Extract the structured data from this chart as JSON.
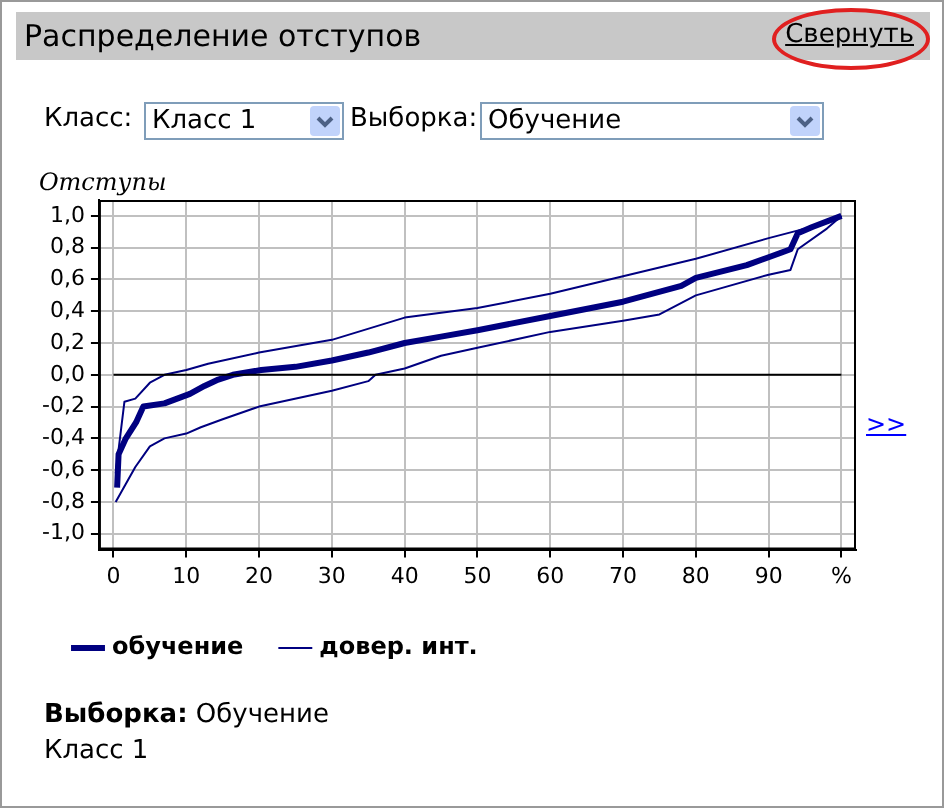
{
  "chart_data": {
    "type": "line",
    "title": "Распределение отступов",
    "ylabel": "Отступы",
    "annotations": [
      "Свернуть",
      "Класс:",
      "Класс 1",
      "Выборка:",
      "Обучение",
      ">>",
      "Выборка:",
      "Обучение",
      "Класс 1"
    ],
    "series": [
      {
        "name": "обучение",
        "color": "#000080",
        "x": [
          0.5,
          0.7,
          1.7,
          3.1,
          4.1,
          7,
          10.5,
          12.5,
          14.4,
          16.4,
          20.3,
          25,
          30,
          35,
          40,
          45,
          50,
          60,
          70,
          78,
          80,
          87,
          90,
          93,
          94,
          96,
          100
        ],
        "values": [
          -0.71,
          -0.5,
          -0.4,
          -0.3,
          -0.2,
          -0.18,
          -0.12,
          -0.07,
          -0.03,
          0,
          0.03,
          0.05,
          0.09,
          0.14,
          0.2,
          0.24,
          0.28,
          0.37,
          0.46,
          0.56,
          0.61,
          0.69,
          0.74,
          0.79,
          0.89,
          0.93,
          1
        ]
      },
      {
        "name": "довер. инт.",
        "color": "#000080",
        "x": [
          0.3,
          1.5,
          3,
          5,
          7,
          10,
          13,
          20,
          30,
          40,
          50,
          60,
          70,
          80,
          90,
          95,
          100
        ],
        "values": [
          -0.62,
          -0.17,
          -0.15,
          -0.05,
          0,
          0.03,
          0.07,
          0.14,
          0.22,
          0.36,
          0.42,
          0.51,
          0.62,
          0.73,
          0.86,
          0.92,
          1
        ]
      },
      {
        "color": "#000080",
        "x": [
          0.3,
          3,
          5,
          7,
          10,
          12,
          15,
          20,
          30,
          35,
          36,
          40,
          45,
          50,
          60,
          70,
          75,
          80,
          90,
          93,
          94,
          98,
          100
        ],
        "values": [
          -0.8,
          -0.58,
          -0.45,
          -0.4,
          -0.37,
          -0.33,
          -0.28,
          -0.2,
          -0.1,
          -0.04,
          0,
          0.04,
          0.12,
          0.17,
          0.27,
          0.34,
          0.38,
          0.5,
          0.63,
          0.66,
          0.79,
          0.92,
          1
        ]
      }
    ],
    "xlim": [
      -2,
      102
    ],
    "xticks": [
      0,
      10,
      20,
      30,
      40,
      50,
      60,
      70,
      80,
      90,
      {
        "value": 100,
        "label": "%"
      }
    ],
    "ylim": [
      -1.1,
      1.1
    ],
    "yticks": [
      {
        "value": -1,
        "label": "-1,0"
      },
      {
        "value": -0.8,
        "label": "-0,8"
      },
      {
        "value": -0.6,
        "label": "-0,6"
      },
      {
        "value": -0.4,
        "label": "-0,4"
      },
      {
        "value": -0.2,
        "label": "-0,2"
      },
      {
        "value": 0,
        "label": "0,0"
      },
      {
        "value": 0.2,
        "label": "0,2"
      },
      {
        "value": 0.4,
        "label": "0,4"
      },
      {
        "value": 0.6,
        "label": "0,6"
      },
      {
        "value": 0.8,
        "label": "0,8"
      },
      {
        "value": 1,
        "label": "1,0"
      }
    ],
    "ref_lines": [
      {
        "axis": "y",
        "value": 0,
        "color": "#000000"
      }
    ],
    "grid": true,
    "legend": "bottom left",
    "marker": "none",
    "line_style": "solid"
  }
}
